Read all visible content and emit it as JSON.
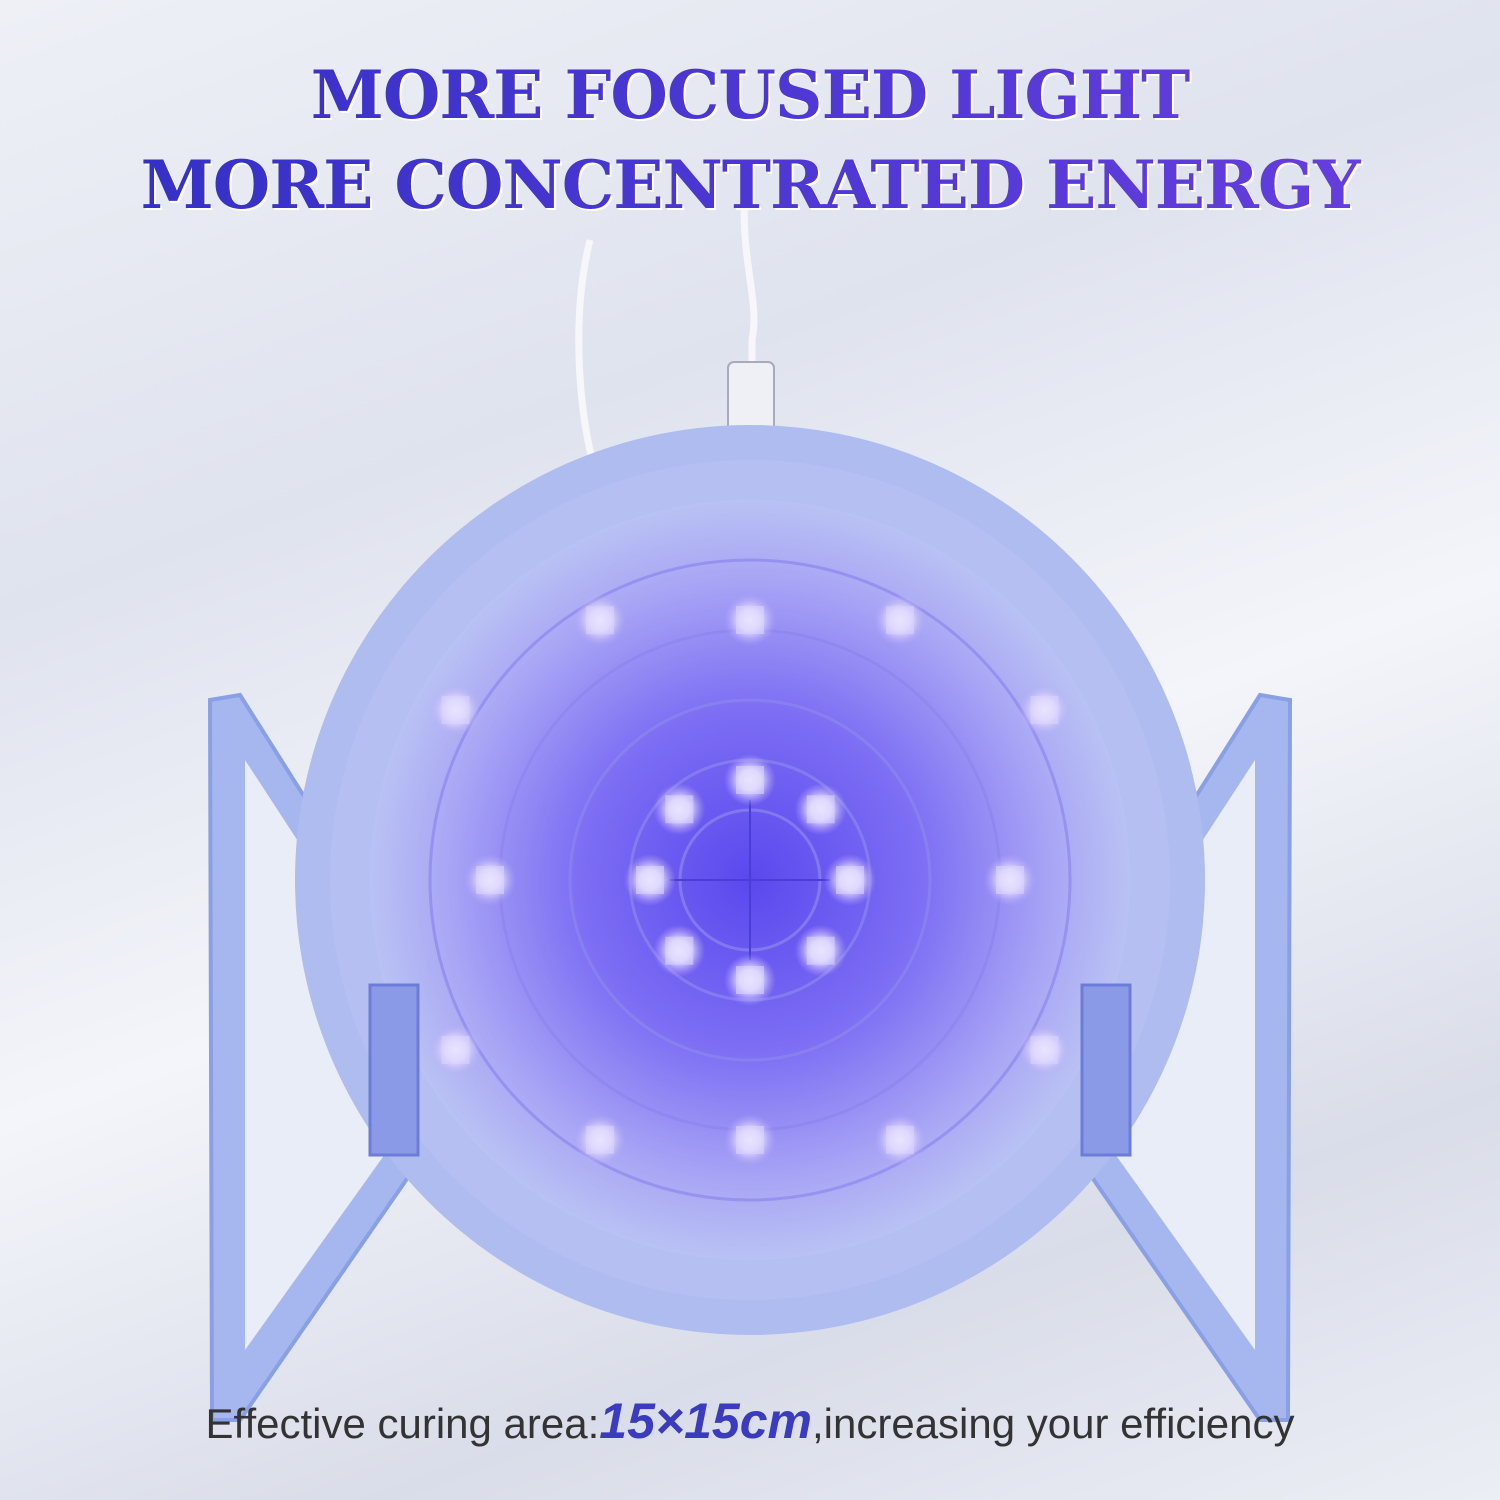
{
  "headline": {
    "line1": "MORE FOCUSED LIGHT",
    "line2": "MORE CONCENTRATED ENERGY"
  },
  "caption": {
    "prefix": "Effective curing area:",
    "highlight": "15×15cm",
    "suffix": ",increasing your efficiency"
  },
  "colors": {
    "headline": "#3a32cc",
    "highlight": "#3b3bbf",
    "lamp_body": "#a9b8ef",
    "uv_glow": "#6a5cf0"
  }
}
